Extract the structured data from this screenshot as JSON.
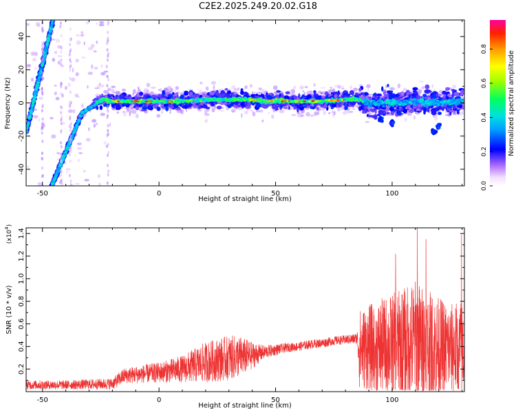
{
  "title": "C2E2.2025.249.20.02.G18",
  "chart_data": [
    {
      "type": "heatmap",
      "name": "spectrogram",
      "xlabel": "Height of straight line (km)",
      "ylabel": "Frequency (Hz)",
      "xlim": [
        -57,
        131
      ],
      "ylim": [
        -50,
        50
      ],
      "xticks": [
        -50,
        0,
        50,
        100
      ],
      "yticks": [
        -40,
        -20,
        0,
        20,
        40
      ],
      "colorbar": {
        "label": "Normalized spectral amplitude",
        "range": [
          0.0,
          0.97
        ],
        "ticks": [
          0.0,
          0.2,
          0.4,
          0.6,
          0.8
        ],
        "tick_labels": [
          "0.0",
          "0.2",
          "0.4",
          "0.6",
          "0.8"
        ]
      },
      "ridge": {
        "description": "Doppler frequency ridge",
        "x": [
          -57,
          -52,
          -48,
          -45,
          -42,
          -39,
          -36,
          -33,
          -30,
          -27,
          -24,
          -20,
          -10,
          0,
          10,
          20,
          30,
          40,
          45,
          50,
          60,
          70,
          80,
          85,
          90,
          100,
          110,
          120,
          131
        ],
        "y": [
          -18,
          10,
          35,
          50,
          -45,
          -22,
          -12,
          -6,
          -2,
          0,
          2,
          1,
          1,
          1,
          1,
          2,
          2,
          2,
          1,
          1,
          1,
          1,
          2,
          2,
          0,
          0,
          1,
          0,
          1
        ]
      }
    },
    {
      "type": "line",
      "name": "snr",
      "xlabel": "Height of straight line (km)",
      "ylabel": "SNR (10 * v/v)",
      "ylabel_scale": "(x10",
      "ylabel_exp": "4",
      "ylabel_close": ")",
      "xlim": [
        -57,
        131
      ],
      "ylim": [
        0,
        1.45
      ],
      "xticks": [
        -50,
        0,
        50,
        100
      ],
      "yticks": [
        0.2,
        0.4,
        0.6,
        0.8,
        1.0,
        1.2,
        1.4
      ],
      "ytick_labels": [
        "0.2",
        "0.4",
        "0.6",
        "0.8",
        "1.0",
        "1.2",
        "1.4"
      ],
      "color": "#ee3333",
      "envelope": {
        "x": [
          -57,
          -40,
          -20,
          -15,
          0,
          10,
          20,
          30,
          35,
          40,
          45,
          50,
          55,
          60,
          65,
          70,
          75,
          80,
          85,
          86,
          95,
          105,
          110,
          115,
          125,
          131
        ],
        "mean": [
          0.06,
          0.06,
          0.07,
          0.14,
          0.17,
          0.2,
          0.26,
          0.3,
          0.31,
          0.32,
          0.35,
          0.37,
          0.39,
          0.4,
          0.42,
          0.43,
          0.45,
          0.46,
          0.47,
          0.38,
          0.4,
          0.42,
          0.45,
          0.4,
          0.38,
          0.37
        ],
        "spread": [
          0.04,
          0.04,
          0.05,
          0.07,
          0.09,
          0.12,
          0.18,
          0.2,
          0.18,
          0.12,
          0.06,
          0.05,
          0.04,
          0.04,
          0.04,
          0.04,
          0.04,
          0.04,
          0.05,
          0.35,
          0.42,
          0.5,
          0.55,
          0.5,
          0.4,
          0.45
        ]
      },
      "peaks": [
        {
          "x": 101.5,
          "y": 1.22
        },
        {
          "x": 110.8,
          "y": 1.45
        },
        {
          "x": 114.5,
          "y": 1.35
        },
        {
          "x": 129.8,
          "y": 1.39
        }
      ]
    }
  ]
}
